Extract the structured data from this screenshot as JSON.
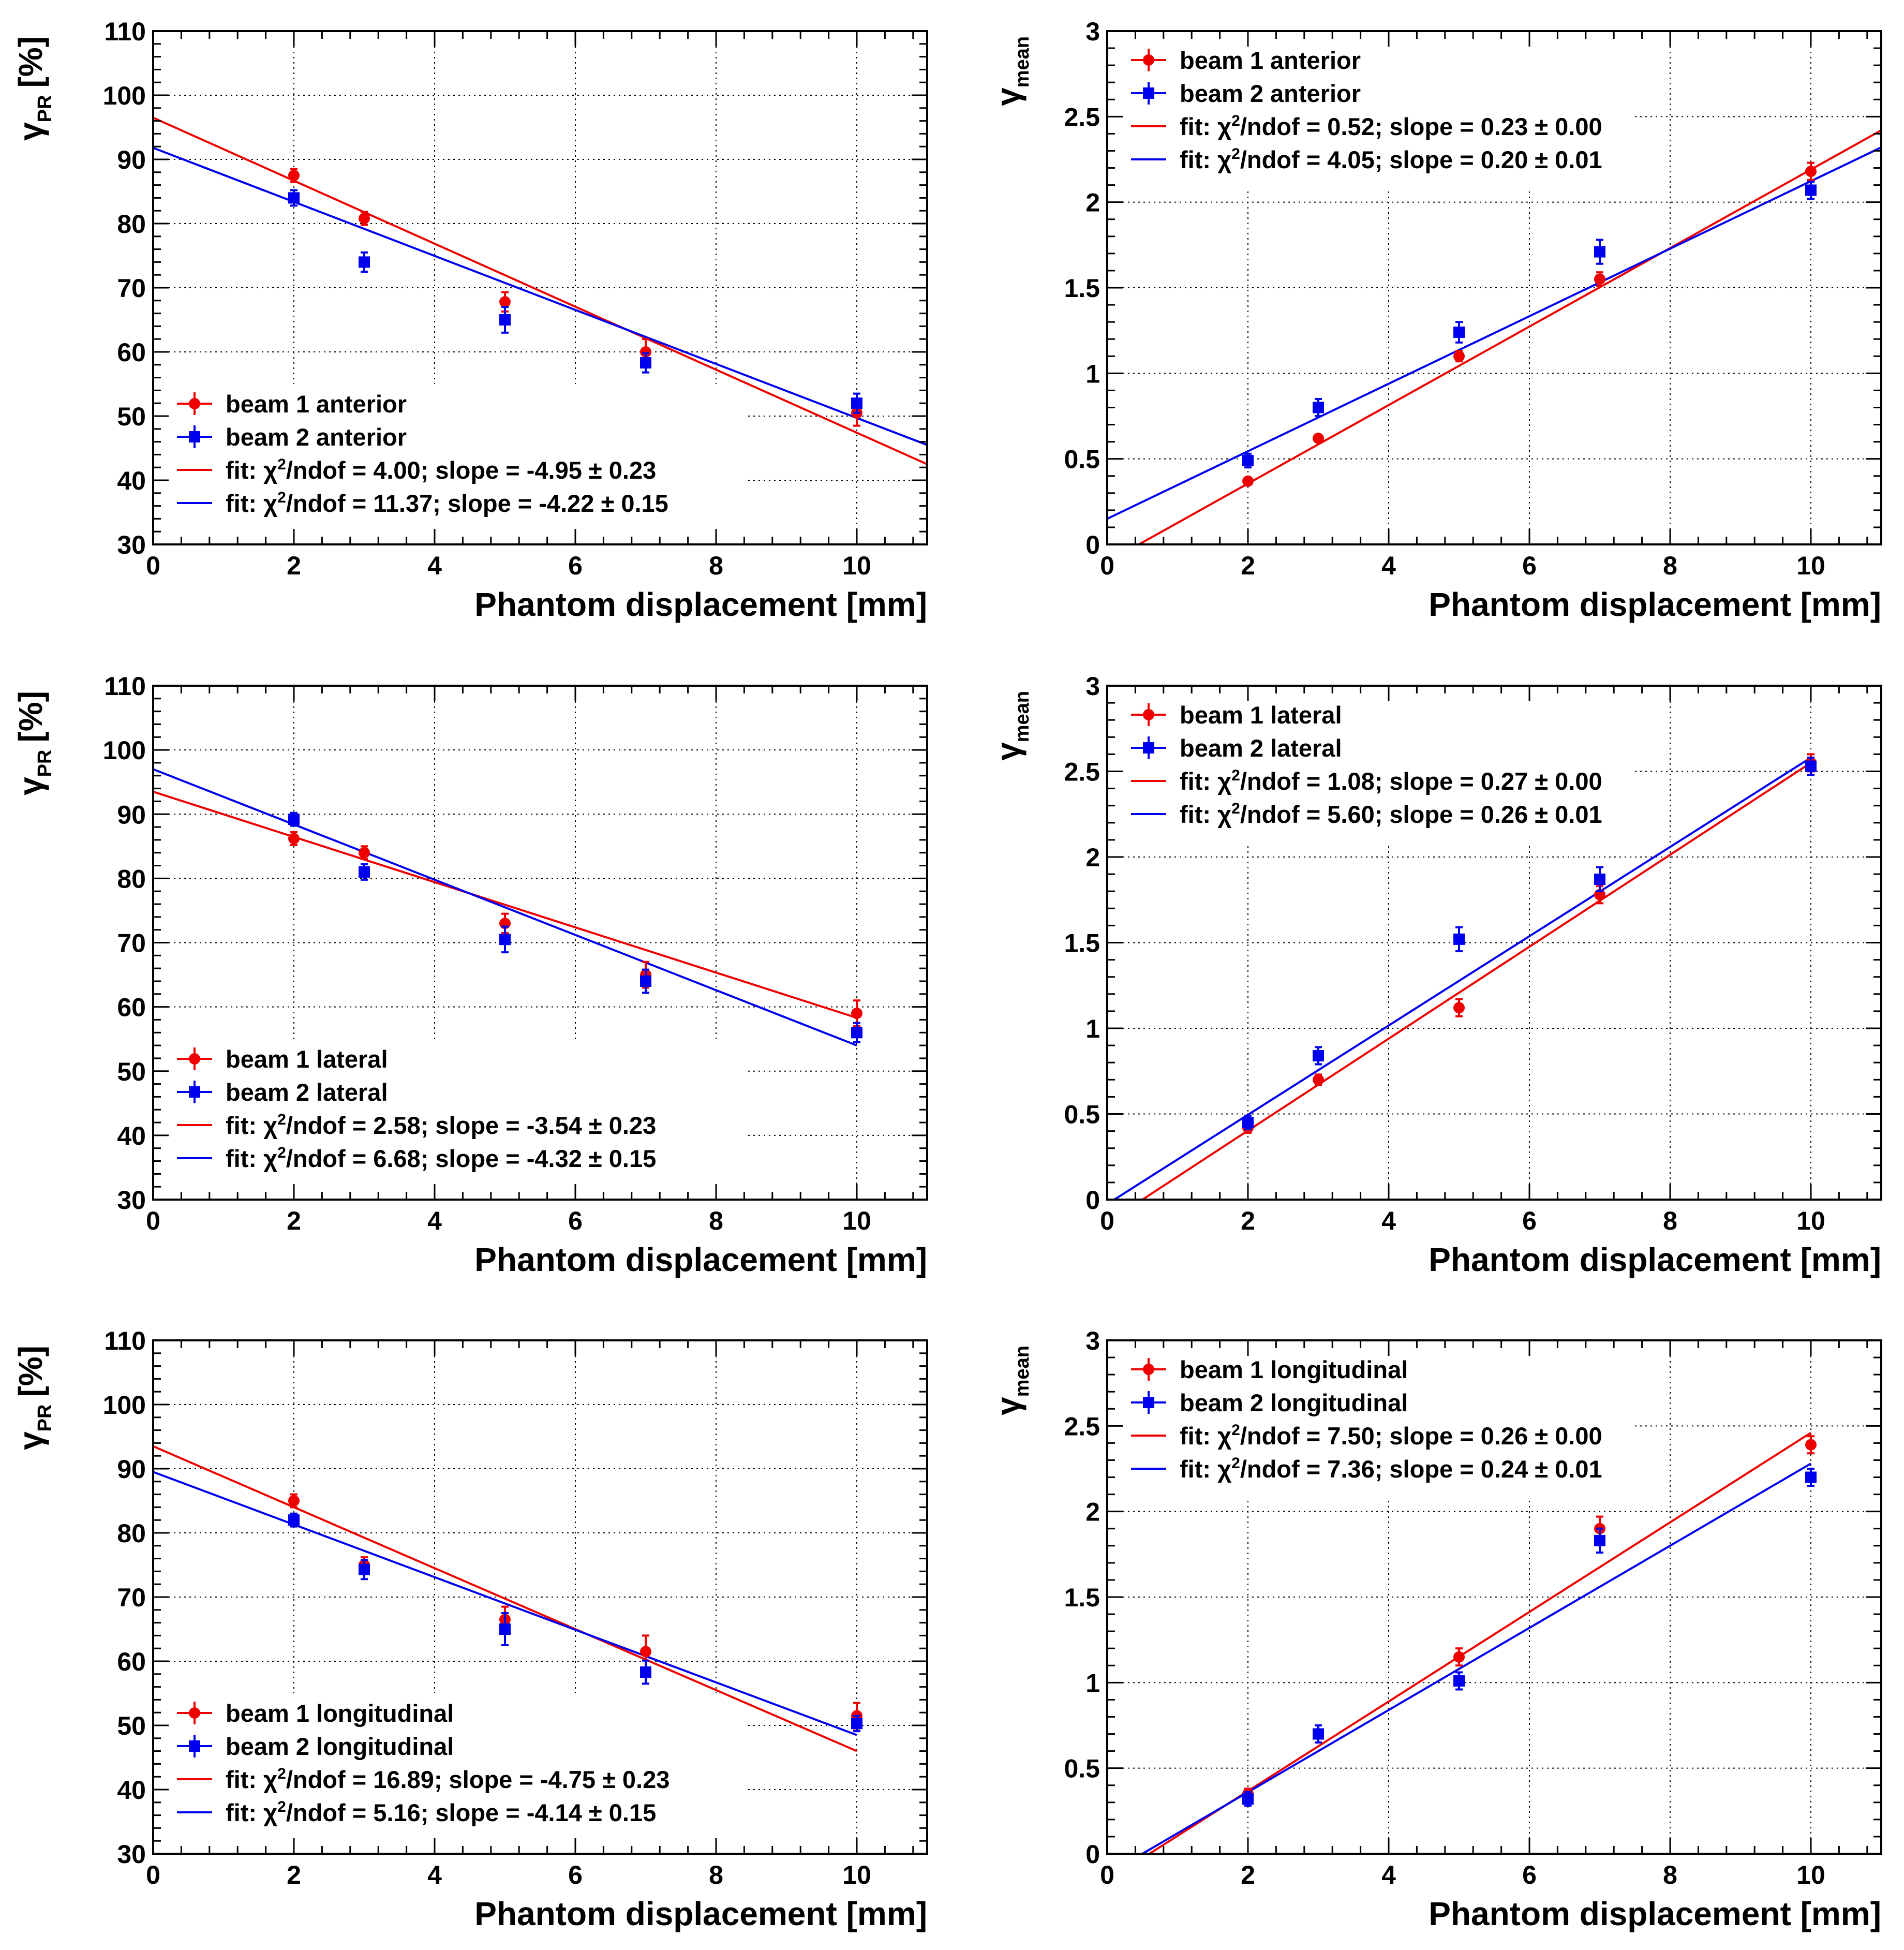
{
  "figure": {
    "layout": "3 rows x 2 columns",
    "colors": {
      "beam1": "#ee0000",
      "beam2": "#0000ee",
      "axis": "#000000",
      "grid": "#000000"
    }
  },
  "chart_data": [
    {
      "id": "gpr-anterior",
      "type": "scatter",
      "xlabel": "Phantom displacement [mm]",
      "ylabel_symbol": "γ",
      "ylabel_sub": "PR",
      "ylabel_unit": "[%]",
      "xlim": [
        0,
        11
      ],
      "ylim": [
        30,
        110
      ],
      "xticks": [
        0,
        2,
        4,
        6,
        8,
        10
      ],
      "yticks": [
        30,
        40,
        50,
        60,
        70,
        80,
        90,
        100,
        110
      ],
      "grid": true,
      "legend_position": "bottom-left",
      "series": [
        {
          "name": "beam 1 anterior",
          "marker": "circle",
          "color": "#ee0000",
          "x": [
            2,
            3,
            5,
            7,
            10
          ],
          "y": [
            87.5,
            80.8,
            67.8,
            60.0,
            50.5
          ],
          "err": [
            1.0,
            1.0,
            1.5,
            2.0,
            2.0
          ]
        },
        {
          "name": "beam 2 anterior",
          "marker": "square",
          "color": "#0000ee",
          "x": [
            2,
            3,
            5,
            7,
            10
          ],
          "y": [
            84.0,
            74.0,
            65.0,
            58.3,
            52.0
          ],
          "err": [
            1.2,
            1.5,
            2.0,
            1.5,
            1.5
          ]
        }
      ],
      "fits": [
        {
          "label": "fit: χ²/ndof = 4.00; slope = -4.95 ± 0.23",
          "prefix": "fit: χ",
          "sup": "2",
          "suffix": "/ndof = 4.00; slope = -4.95 ± 0.23",
          "color": "#ee0000",
          "x": [
            0,
            11
          ],
          "y": [
            96.5,
            42.5
          ]
        },
        {
          "label": "fit: χ²/ndof = 11.37; slope = -4.22 ± 0.15",
          "prefix": "fit: χ",
          "sup": "2",
          "suffix": "/ndof = 11.37; slope = -4.22 ± 0.15",
          "color": "#0000ee",
          "x": [
            0,
            11
          ],
          "y": [
            91.8,
            45.5
          ]
        }
      ]
    },
    {
      "id": "gmean-anterior",
      "type": "scatter",
      "xlabel": "Phantom displacement [mm]",
      "ylabel_symbol": "γ",
      "ylabel_sub": "mean",
      "ylabel_unit": "",
      "xlim": [
        0,
        11
      ],
      "ylim": [
        0,
        3
      ],
      "xticks": [
        0,
        2,
        4,
        6,
        8,
        10
      ],
      "yticks": [
        0,
        0.5,
        1,
        1.5,
        2,
        2.5,
        3
      ],
      "grid": true,
      "legend_position": "top-left",
      "series": [
        {
          "name": "beam 1 anterior",
          "marker": "circle",
          "color": "#ee0000",
          "x": [
            2,
            3,
            5,
            7,
            10
          ],
          "y": [
            0.37,
            0.62,
            1.1,
            1.55,
            2.18
          ],
          "err": [
            0.02,
            0.02,
            0.03,
            0.04,
            0.05
          ]
        },
        {
          "name": "beam 2 anterior",
          "marker": "square",
          "color": "#0000ee",
          "x": [
            2,
            3,
            5,
            7,
            10
          ],
          "y": [
            0.49,
            0.8,
            1.24,
            1.71,
            2.07
          ],
          "err": [
            0.04,
            0.05,
            0.06,
            0.07,
            0.05
          ]
        }
      ],
      "fits": [
        {
          "label": "fit: χ²/ndof = 0.52; slope = 0.23 ± 0.00",
          "prefix": "fit: χ",
          "sup": "2",
          "suffix": "/ndof = 0.52; slope = 0.23 ± 0.00",
          "color": "#ee0000",
          "x": [
            0.45,
            11
          ],
          "y": [
            0.0,
            2.42
          ]
        },
        {
          "label": "fit: χ²/ndof = 4.05; slope = 0.20 ± 0.01",
          "prefix": "fit: χ",
          "sup": "2",
          "suffix": "/ndof = 4.05; slope = 0.20 ± 0.01",
          "color": "#0000ee",
          "x": [
            0,
            11
          ],
          "y": [
            0.15,
            2.32
          ]
        }
      ]
    },
    {
      "id": "gpr-lateral",
      "type": "scatter",
      "xlabel": "Phantom displacement [mm]",
      "ylabel_symbol": "γ",
      "ylabel_sub": "PR",
      "ylabel_unit": "[%]",
      "xlim": [
        0,
        11
      ],
      "ylim": [
        30,
        110
      ],
      "xticks": [
        0,
        2,
        4,
        6,
        8,
        10
      ],
      "yticks": [
        30,
        40,
        50,
        60,
        70,
        80,
        90,
        100,
        110
      ],
      "grid": true,
      "legend_position": "bottom-left",
      "series": [
        {
          "name": "beam 1 lateral",
          "marker": "circle",
          "color": "#ee0000",
          "x": [
            2,
            3,
            5,
            7,
            10
          ],
          "y": [
            86.2,
            84.0,
            73.0,
            65.0,
            59.0
          ],
          "err": [
            1.0,
            1.0,
            1.5,
            2.0,
            2.0
          ]
        },
        {
          "name": "beam 2 lateral",
          "marker": "square",
          "color": "#0000ee",
          "x": [
            2,
            3,
            5,
            7,
            10
          ],
          "y": [
            89.2,
            81.0,
            70.5,
            64.0,
            56.0
          ],
          "err": [
            1.0,
            1.2,
            2.0,
            1.8,
            1.5
          ]
        }
      ],
      "fits": [
        {
          "label": "fit: χ²/ndof = 2.58; slope = -3.54 ± 0.23",
          "prefix": "fit: χ",
          "sup": "2",
          "suffix": "/ndof = 2.58; slope = -3.54 ± 0.23",
          "color": "#ee0000",
          "x": [
            0,
            10
          ],
          "y": [
            93.5,
            58.3
          ]
        },
        {
          "label": "fit: χ²/ndof = 6.68; slope = -4.32 ± 0.15",
          "prefix": "fit: χ",
          "sup": "2",
          "suffix": "/ndof = 6.68; slope = -4.32 ± 0.15",
          "color": "#0000ee",
          "x": [
            0,
            10
          ],
          "y": [
            97.0,
            54.0
          ]
        }
      ]
    },
    {
      "id": "gmean-lateral",
      "type": "scatter",
      "xlabel": "Phantom displacement [mm]",
      "ylabel_symbol": "γ",
      "ylabel_sub": "mean",
      "ylabel_unit": "",
      "xlim": [
        0,
        11
      ],
      "ylim": [
        0,
        3
      ],
      "xticks": [
        0,
        2,
        4,
        6,
        8,
        10
      ],
      "yticks": [
        0,
        0.5,
        1,
        1.5,
        2,
        2.5,
        3
      ],
      "grid": true,
      "legend_position": "top-left",
      "series": [
        {
          "name": "beam 1 lateral",
          "marker": "circle",
          "color": "#ee0000",
          "x": [
            2,
            3,
            5,
            7,
            10
          ],
          "y": [
            0.42,
            0.7,
            1.12,
            1.78,
            2.55
          ],
          "err": [
            0.03,
            0.03,
            0.05,
            0.05,
            0.05
          ]
        },
        {
          "name": "beam 2 lateral",
          "marker": "square",
          "color": "#0000ee",
          "x": [
            2,
            3,
            5,
            7,
            10
          ],
          "y": [
            0.45,
            0.84,
            1.52,
            1.87,
            2.53
          ],
          "err": [
            0.04,
            0.05,
            0.07,
            0.07,
            0.05
          ]
        }
      ],
      "fits": [
        {
          "label": "fit: χ²/ndof = 1.08; slope = 0.27 ± 0.00",
          "prefix": "fit: χ",
          "sup": "2",
          "suffix": "/ndof = 1.08; slope = 0.27 ± 0.00",
          "color": "#ee0000",
          "x": [
            0.5,
            10
          ],
          "y": [
            0.0,
            2.55
          ]
        },
        {
          "label": "fit: χ²/ndof = 5.60; slope = 0.26 ± 0.01",
          "prefix": "fit: χ",
          "sup": "2",
          "suffix": "/ndof = 5.60; slope = 0.26 ± 0.01",
          "color": "#0000ee",
          "x": [
            0.1,
            10
          ],
          "y": [
            0.0,
            2.58
          ]
        }
      ]
    },
    {
      "id": "gpr-longitudinal",
      "type": "scatter",
      "xlabel": "Phantom displacement [mm]",
      "ylabel_symbol": "γ",
      "ylabel_sub": "PR",
      "ylabel_unit": "[%]",
      "xlim": [
        0,
        11
      ],
      "ylim": [
        30,
        110
      ],
      "xticks": [
        0,
        2,
        4,
        6,
        8,
        10
      ],
      "yticks": [
        30,
        40,
        50,
        60,
        70,
        80,
        90,
        100,
        110
      ],
      "grid": true,
      "legend_position": "bottom-left",
      "series": [
        {
          "name": "beam 1 longitudinal",
          "marker": "circle",
          "color": "#ee0000",
          "x": [
            2,
            3,
            5,
            7,
            10
          ],
          "y": [
            85.0,
            75.0,
            66.5,
            61.5,
            51.5
          ],
          "err": [
            1.0,
            1.2,
            2.0,
            2.5,
            2.0
          ]
        },
        {
          "name": "beam 2 longitudinal",
          "marker": "square",
          "color": "#0000ee",
          "x": [
            2,
            3,
            5,
            7,
            10
          ],
          "y": [
            82.0,
            74.3,
            65.0,
            58.3,
            50.3
          ],
          "err": [
            1.0,
            1.5,
            2.5,
            1.8,
            1.2
          ]
        }
      ],
      "fits": [
        {
          "label": "fit: χ²/ndof = 16.89; slope = -4.75 ± 0.23",
          "prefix": "fit: χ",
          "sup": "2",
          "suffix": "/ndof = 16.89; slope = -4.75 ± 0.23",
          "color": "#ee0000",
          "x": [
            0,
            10
          ],
          "y": [
            93.5,
            46.0
          ]
        },
        {
          "label": "fit: χ²/ndof = 5.16; slope = -4.14 ± 0.15",
          "prefix": "fit: χ",
          "sup": "2",
          "suffix": "/ndof = 5.16; slope = -4.14 ± 0.15",
          "color": "#0000ee",
          "x": [
            0,
            10
          ],
          "y": [
            89.5,
            48.5
          ]
        }
      ]
    },
    {
      "id": "gmean-longitudinal",
      "type": "scatter",
      "xlabel": "Phantom displacement [mm]",
      "ylabel_symbol": "γ",
      "ylabel_sub": "mean",
      "ylabel_unit": "",
      "xlim": [
        0,
        11
      ],
      "ylim": [
        0,
        3
      ],
      "xticks": [
        0,
        2,
        4,
        6,
        8,
        10
      ],
      "yticks": [
        0,
        0.5,
        1,
        1.5,
        2,
        2.5,
        3
      ],
      "grid": true,
      "legend_position": "top-left",
      "series": [
        {
          "name": "beam 1 longitudinal",
          "marker": "circle",
          "color": "#ee0000",
          "x": [
            2,
            3,
            5,
            7,
            10
          ],
          "y": [
            0.35,
            0.7,
            1.15,
            1.9,
            2.39
          ],
          "err": [
            0.03,
            0.05,
            0.05,
            0.07,
            0.05
          ]
        },
        {
          "name": "beam 2 longitudinal",
          "marker": "square",
          "color": "#0000ee",
          "x": [
            2,
            3,
            5,
            7,
            10
          ],
          "y": [
            0.32,
            0.7,
            1.01,
            1.83,
            2.2
          ],
          "err": [
            0.04,
            0.05,
            0.05,
            0.07,
            0.05
          ]
        }
      ],
      "fits": [
        {
          "label": "fit: χ²/ndof = 7.50; slope = 0.26 ± 0.00",
          "prefix": "fit: χ",
          "sup": "2",
          "suffix": "/ndof = 7.50; slope = 0.26 ± 0.00",
          "color": "#ee0000",
          "x": [
            0.6,
            10
          ],
          "y": [
            0.0,
            2.46
          ]
        },
        {
          "label": "fit: χ²/ndof = 7.36; slope = 0.24 ± 0.01",
          "prefix": "fit: χ",
          "sup": "2",
          "suffix": "/ndof = 7.36; slope = 0.24 ± 0.01",
          "color": "#0000ee",
          "x": [
            0.5,
            10
          ],
          "y": [
            0.0,
            2.28
          ]
        }
      ]
    }
  ]
}
